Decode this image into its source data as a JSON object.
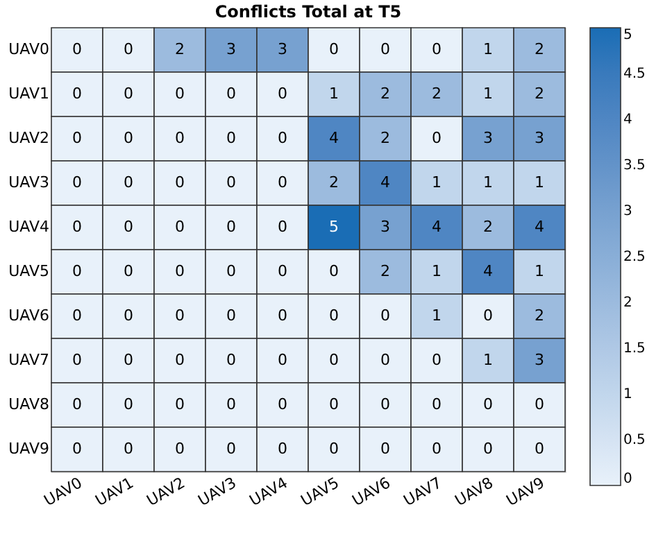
{
  "chart_data": {
    "type": "heatmap",
    "title": "Conflicts Total at T5",
    "categories": [
      "UAV0",
      "UAV1",
      "UAV2",
      "UAV3",
      "UAV4",
      "UAV5",
      "UAV6",
      "UAV7",
      "UAV8",
      "UAV9"
    ],
    "y_categories": [
      "UAV0",
      "UAV1",
      "UAV2",
      "UAV3",
      "UAV4",
      "UAV5",
      "UAV6",
      "UAV7",
      "UAV8",
      "UAV9"
    ],
    "cells": [
      [
        0,
        0,
        2,
        3,
        3,
        0,
        0,
        0,
        1,
        2
      ],
      [
        0,
        0,
        0,
        0,
        0,
        1,
        2,
        2,
        1,
        2
      ],
      [
        0,
        0,
        0,
        0,
        0,
        4,
        2,
        0,
        3,
        3
      ],
      [
        0,
        0,
        0,
        0,
        0,
        2,
        4,
        1,
        1,
        1
      ],
      [
        0,
        0,
        0,
        0,
        0,
        5,
        3,
        4,
        2,
        4
      ],
      [
        0,
        0,
        0,
        0,
        0,
        0,
        2,
        1,
        4,
        1
      ],
      [
        0,
        0,
        0,
        0,
        0,
        0,
        0,
        1,
        0,
        2
      ],
      [
        0,
        0,
        0,
        0,
        0,
        0,
        0,
        0,
        1,
        3
      ],
      [
        0,
        0,
        0,
        0,
        0,
        0,
        0,
        0,
        0,
        0
      ],
      [
        0,
        0,
        0,
        0,
        0,
        0,
        0,
        0,
        0,
        0
      ]
    ],
    "clim": [
      0,
      5
    ],
    "cticks": [
      0,
      0.5,
      1,
      1.5,
      2,
      2.5,
      3,
      3.5,
      4,
      4.5,
      5
    ],
    "data_labels": true
  }
}
